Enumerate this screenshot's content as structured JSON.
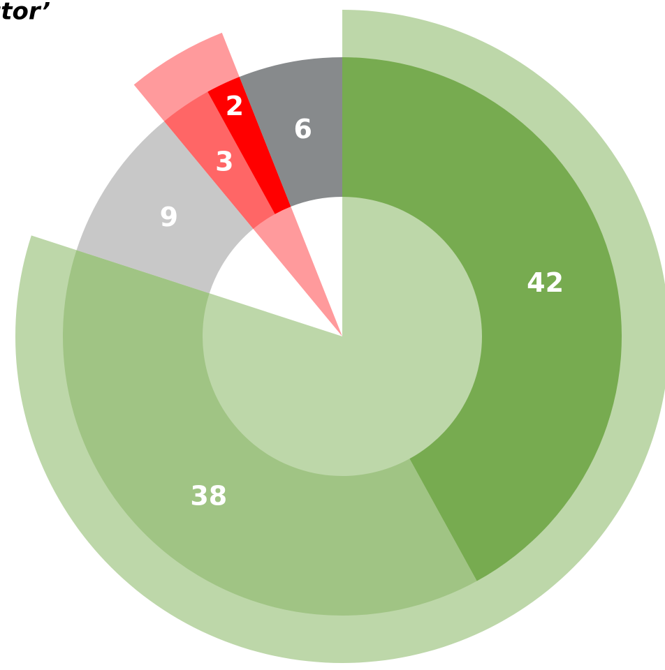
{
  "chart_data": {
    "type": "nested-donut",
    "title": "ctor’",
    "outer": {
      "values": [
        80,
        9,
        5,
        6
      ],
      "colors": [
        "#bdd7a9",
        "none",
        "#ff9a9c",
        "none"
      ]
    },
    "series": [
      {
        "values": [
          42,
          38,
          9,
          3,
          2,
          6
        ],
        "colors": [
          "#77ab50",
          "#a0c484",
          "#c8c8c8",
          "#ff6666",
          "#ff0000",
          "#878a8c"
        ]
      }
    ]
  }
}
